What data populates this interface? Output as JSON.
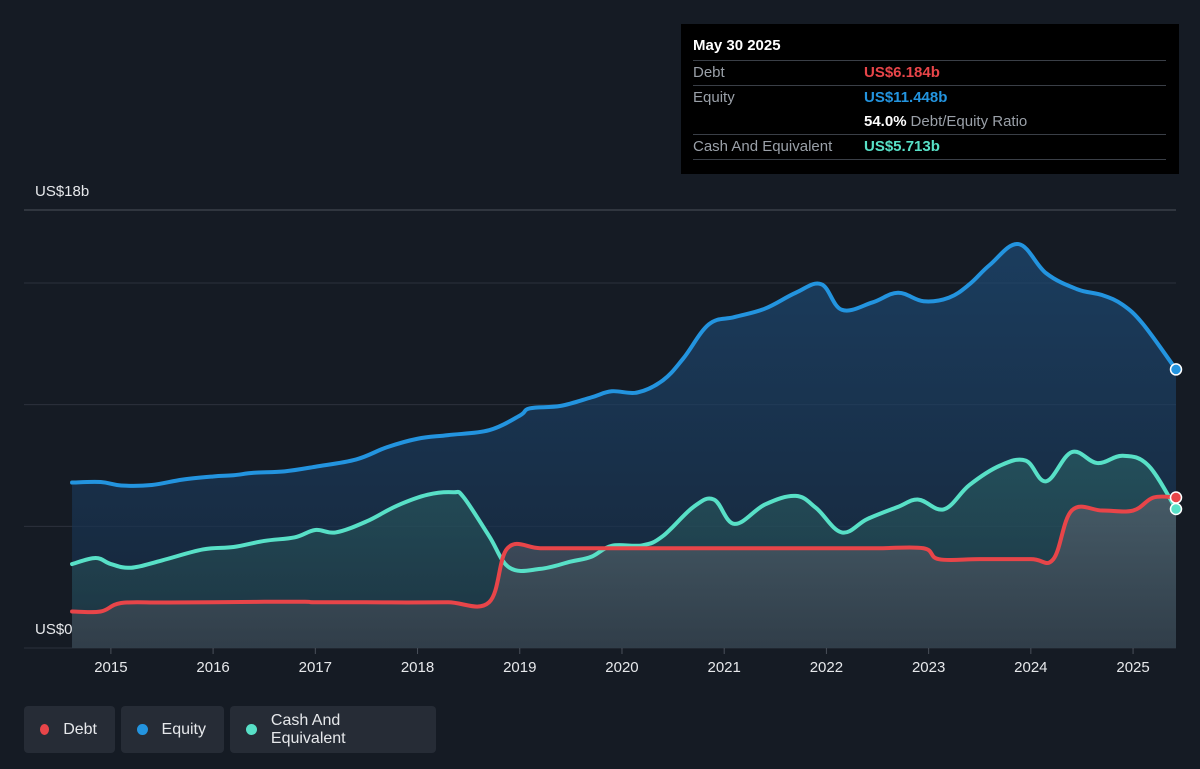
{
  "tooltip": {
    "date": "May 30 2025",
    "debt_label": "Debt",
    "debt_value": "US$6.184b",
    "equity_label": "Equity",
    "equity_value": "US$11.448b",
    "ratio_value": "54.0%",
    "ratio_label": "Debt/Equity Ratio",
    "cash_label": "Cash And Equivalent",
    "cash_value": "US$5.713b"
  },
  "legend": {
    "debt": "Debt",
    "equity": "Equity",
    "cash": "Cash And Equivalent"
  },
  "colors": {
    "debt": "#e84549",
    "equity": "#2394df",
    "cash": "#58e0c7",
    "background": "#151b24"
  },
  "chart_data": {
    "type": "area",
    "y_axis_labels": {
      "top": "US$18b",
      "bottom": "US$0"
    },
    "ylim": [
      0,
      18
    ],
    "xlim": [
      2014.6,
      2025.42
    ],
    "x_ticks": [
      "2015",
      "2016",
      "2017",
      "2018",
      "2019",
      "2020",
      "2021",
      "2022",
      "2023",
      "2024",
      "2025"
    ],
    "grid": true,
    "series": [
      {
        "name": "Equity",
        "key": "equity",
        "points": [
          [
            2014.62,
            6.8
          ],
          [
            2014.9,
            6.82
          ],
          [
            2015.1,
            6.68
          ],
          [
            2015.4,
            6.7
          ],
          [
            2015.7,
            6.92
          ],
          [
            2016.0,
            7.05
          ],
          [
            2016.2,
            7.1
          ],
          [
            2016.4,
            7.2
          ],
          [
            2016.7,
            7.26
          ],
          [
            2017.0,
            7.45
          ],
          [
            2017.4,
            7.75
          ],
          [
            2017.7,
            8.25
          ],
          [
            2018.0,
            8.6
          ],
          [
            2018.3,
            8.75
          ],
          [
            2018.7,
            8.95
          ],
          [
            2019.0,
            9.55
          ],
          [
            2019.1,
            9.85
          ],
          [
            2019.4,
            9.95
          ],
          [
            2019.7,
            10.3
          ],
          [
            2019.9,
            10.55
          ],
          [
            2020.15,
            10.5
          ],
          [
            2020.4,
            11.0
          ],
          [
            2020.6,
            11.9
          ],
          [
            2020.85,
            13.3
          ],
          [
            2021.1,
            13.6
          ],
          [
            2021.4,
            13.95
          ],
          [
            2021.7,
            14.6
          ],
          [
            2021.95,
            14.95
          ],
          [
            2022.15,
            13.9
          ],
          [
            2022.45,
            14.2
          ],
          [
            2022.7,
            14.6
          ],
          [
            2022.95,
            14.25
          ],
          [
            2023.2,
            14.4
          ],
          [
            2023.4,
            14.95
          ],
          [
            2023.6,
            15.75
          ],
          [
            2023.88,
            16.6
          ],
          [
            2024.15,
            15.4
          ],
          [
            2024.45,
            14.75
          ],
          [
            2024.7,
            14.5
          ],
          [
            2024.9,
            14.1
          ],
          [
            2025.1,
            13.3
          ],
          [
            2025.42,
            11.448
          ]
        ]
      },
      {
        "name": "Cash And Equivalent",
        "key": "cash",
        "points": [
          [
            2014.62,
            3.45
          ],
          [
            2014.85,
            3.7
          ],
          [
            2015.0,
            3.45
          ],
          [
            2015.2,
            3.3
          ],
          [
            2015.5,
            3.6
          ],
          [
            2015.9,
            4.05
          ],
          [
            2016.2,
            4.15
          ],
          [
            2016.5,
            4.4
          ],
          [
            2016.8,
            4.55
          ],
          [
            2017.0,
            4.85
          ],
          [
            2017.2,
            4.75
          ],
          [
            2017.5,
            5.2
          ],
          [
            2017.8,
            5.85
          ],
          [
            2018.1,
            6.3
          ],
          [
            2018.35,
            6.4
          ],
          [
            2018.45,
            6.2
          ],
          [
            2018.7,
            4.6
          ],
          [
            2018.9,
            3.3
          ],
          [
            2019.2,
            3.25
          ],
          [
            2019.5,
            3.55
          ],
          [
            2019.7,
            3.75
          ],
          [
            2019.9,
            4.2
          ],
          [
            2020.2,
            4.22
          ],
          [
            2020.4,
            4.6
          ],
          [
            2020.7,
            5.8
          ],
          [
            2020.9,
            6.1
          ],
          [
            2021.1,
            5.1
          ],
          [
            2021.4,
            5.9
          ],
          [
            2021.7,
            6.25
          ],
          [
            2021.9,
            5.75
          ],
          [
            2022.15,
            4.75
          ],
          [
            2022.4,
            5.3
          ],
          [
            2022.7,
            5.8
          ],
          [
            2022.9,
            6.1
          ],
          [
            2023.15,
            5.7
          ],
          [
            2023.4,
            6.7
          ],
          [
            2023.7,
            7.5
          ],
          [
            2023.95,
            7.7
          ],
          [
            2024.15,
            6.85
          ],
          [
            2024.4,
            8.05
          ],
          [
            2024.65,
            7.6
          ],
          [
            2024.9,
            7.9
          ],
          [
            2025.15,
            7.5
          ],
          [
            2025.42,
            5.713
          ]
        ]
      },
      {
        "name": "Debt",
        "key": "debt",
        "points": [
          [
            2014.62,
            1.5
          ],
          [
            2014.9,
            1.5
          ],
          [
            2015.1,
            1.85
          ],
          [
            2015.5,
            1.87
          ],
          [
            2016.0,
            1.88
          ],
          [
            2016.5,
            1.9
          ],
          [
            2016.9,
            1.9
          ],
          [
            2017.0,
            1.88
          ],
          [
            2017.5,
            1.88
          ],
          [
            2017.9,
            1.87
          ],
          [
            2018.3,
            1.88
          ],
          [
            2018.7,
            1.88
          ],
          [
            2018.88,
            4.1
          ],
          [
            2019.2,
            4.1
          ],
          [
            2019.6,
            4.1
          ],
          [
            2020.0,
            4.1
          ],
          [
            2020.5,
            4.1
          ],
          [
            2021.0,
            4.1
          ],
          [
            2021.5,
            4.1
          ],
          [
            2022.0,
            4.1
          ],
          [
            2022.5,
            4.1
          ],
          [
            2022.95,
            4.1
          ],
          [
            2023.1,
            3.65
          ],
          [
            2023.5,
            3.65
          ],
          [
            2024.0,
            3.65
          ],
          [
            2024.22,
            3.65
          ],
          [
            2024.4,
            5.65
          ],
          [
            2024.7,
            5.65
          ],
          [
            2025.0,
            5.65
          ],
          [
            2025.2,
            6.184
          ],
          [
            2025.42,
            6.184
          ]
        ]
      }
    ]
  }
}
